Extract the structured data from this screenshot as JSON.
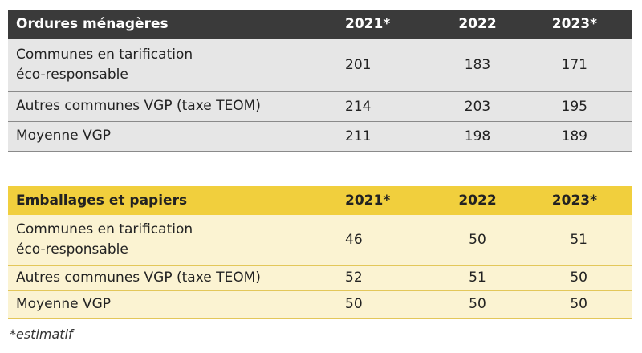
{
  "table1": {
    "headers": [
      "Ordures ménagères",
      "2021*",
      "2022",
      "2023*"
    ],
    "rows": [
      {
        "label_line1": "Communes en tarification",
        "label_line2": "éco-responsable",
        "values": [
          "201",
          "183",
          "171"
        ]
      },
      {
        "label_line1": "Autres communes VGP (taxe TEOM)",
        "label_line2": "",
        "values": [
          "214",
          "203",
          "195"
        ]
      },
      {
        "label_line1": "Moyenne VGP",
        "label_line2": "",
        "values": [
          "211",
          "198",
          "189"
        ]
      }
    ]
  },
  "table2": {
    "headers": [
      "Emballages et papiers",
      "2021*",
      "2022",
      "2023*"
    ],
    "rows": [
      {
        "label_line1": "Communes en tarification",
        "label_line2": "éco-responsable",
        "values": [
          "46",
          "50",
          "51"
        ]
      },
      {
        "label_line1": "Autres communes VGP (taxe TEOM)",
        "label_line2": "",
        "values": [
          "52",
          "51",
          "50"
        ]
      },
      {
        "label_line1": "Moyenne VGP",
        "label_line2": "",
        "values": [
          "50",
          "50",
          "50"
        ]
      }
    ]
  },
  "colors": {
    "table1_header_bg": "#3a3a3a",
    "table1_row_bg": "#e6e6e6",
    "table2_header_bg": "#f1cf3d",
    "table2_row_bg": "#fbf3d2"
  },
  "footnote": "*estimatif"
}
